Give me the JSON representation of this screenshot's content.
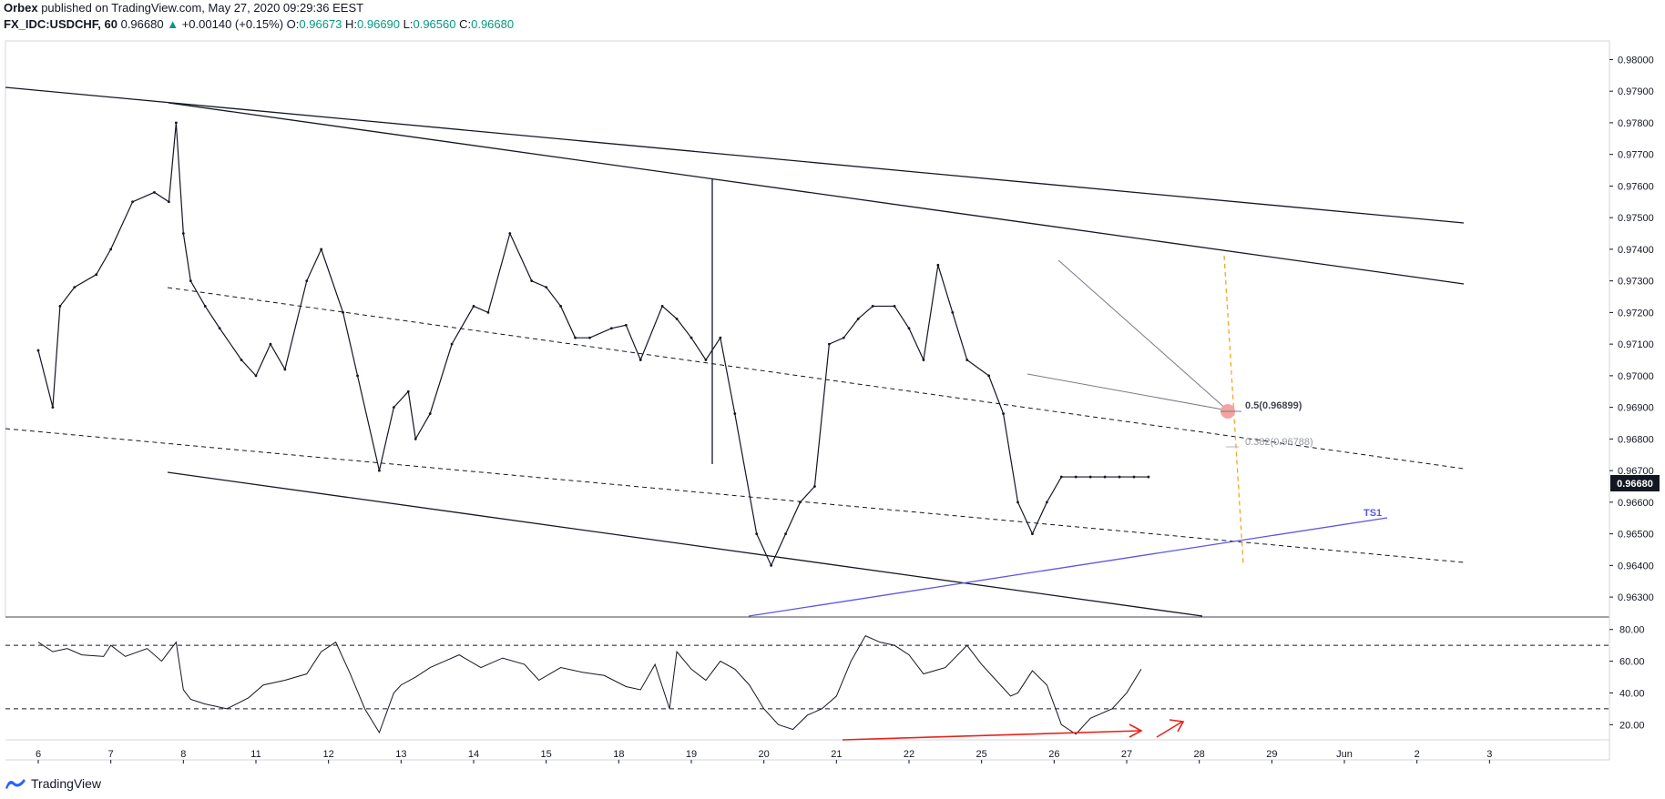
{
  "header": {
    "author": "Orbex",
    "published_text": "published on TradingView.com, May 27, 2020 09:29:36 EEST",
    "symbol": "FX_IDC:USDCHF, 60",
    "last": "0.96680",
    "change_arrow": "▲",
    "change": "+0.00140 (+0.15%)",
    "o_label": "O:",
    "o_value": "0.96673",
    "h_label": "H:",
    "h_value": "0.96690",
    "l_label": "L:",
    "l_value": "0.96560",
    "c_label": "C:",
    "c_value": "0.96680"
  },
  "footer": {
    "brand": "TradingView"
  },
  "colors": {
    "candle": "#000000",
    "trend": "#000000",
    "blue": "#5a55e8",
    "orange": "#f5a623",
    "red": "#e8231b",
    "up": "#089981"
  },
  "chart_data": {
    "type": "line",
    "title": "FX_IDC:USDCHF, 60",
    "price_axis": {
      "ticks": [
        "0.98000",
        "0.97900",
        "0.97800",
        "0.97700",
        "0.97600",
        "0.97500",
        "0.97400",
        "0.97300",
        "0.97200",
        "0.97100",
        "0.97000",
        "0.96900",
        "0.96800",
        "0.96700",
        "0.96600",
        "0.96500",
        "0.96400",
        "0.96300"
      ],
      "ylim": [
        0.9626,
        0.9803
      ],
      "last_price_label": "0.96680"
    },
    "rsi_axis": {
      "ticks": [
        "80.00",
        "60.00",
        "40.00",
        "20.00"
      ],
      "ylim": [
        11,
        85
      ],
      "levels": [
        70,
        30
      ]
    },
    "time_axis": {
      "labels": [
        "6",
        "7",
        "8",
        "11",
        "12",
        "13",
        "14",
        "15",
        "18",
        "19",
        "20",
        "21",
        "22",
        "25",
        "26",
        "27",
        "28",
        "29",
        "Jun",
        "2",
        "3"
      ],
      "xlim": [
        0,
        21
      ]
    },
    "price_series": {
      "name": "USDCHF",
      "x": [
        0.0,
        0.2,
        0.3,
        0.5,
        0.8,
        1.0,
        1.3,
        1.6,
        1.8,
        1.9,
        2.0,
        2.1,
        2.3,
        2.5,
        2.8,
        3.0,
        3.2,
        3.4,
        3.7,
        3.9,
        4.2,
        4.4,
        4.7,
        4.9,
        5.1,
        5.2,
        5.4,
        5.7,
        6.0,
        6.2,
        6.5,
        6.8,
        7.0,
        7.2,
        7.4,
        7.6,
        7.9,
        8.1,
        8.3,
        8.6,
        8.8,
        9.0,
        9.2,
        9.4,
        9.6,
        9.9,
        10.1,
        10.3,
        10.5,
        10.7,
        10.9,
        11.1,
        11.3,
        11.5,
        11.8,
        12.0,
        12.2,
        12.4,
        12.6,
        12.8,
        13.1,
        13.3,
        13.5,
        13.7,
        13.9,
        14.1,
        14.3,
        14.5,
        14.7,
        14.9,
        15.1,
        15.3
      ],
      "y": [
        0.9708,
        0.969,
        0.9722,
        0.9728,
        0.9732,
        0.974,
        0.9755,
        0.9758,
        0.9755,
        0.978,
        0.9745,
        0.973,
        0.9722,
        0.9715,
        0.9705,
        0.97,
        0.971,
        0.9702,
        0.973,
        0.974,
        0.972,
        0.97,
        0.967,
        0.969,
        0.9695,
        0.968,
        0.9688,
        0.971,
        0.9722,
        0.972,
        0.9745,
        0.973,
        0.9728,
        0.9722,
        0.9712,
        0.9712,
        0.9715,
        0.9716,
        0.9705,
        0.9722,
        0.9718,
        0.9712,
        0.9705,
        0.9712,
        0.9688,
        0.965,
        0.964,
        0.965,
        0.966,
        0.9665,
        0.971,
        0.9712,
        0.9718,
        0.9722,
        0.9722,
        0.9715,
        0.9705,
        0.9735,
        0.972,
        0.9705,
        0.97,
        0.9688,
        0.966,
        0.965,
        0.966,
        0.9668,
        0.9668,
        0.9668,
        0.9668,
        0.9668,
        0.9668,
        0.9668
      ]
    },
    "rsi_series": {
      "name": "RSI",
      "x": [
        0.0,
        0.2,
        0.4,
        0.6,
        0.9,
        1.0,
        1.2,
        1.5,
        1.7,
        1.9,
        2.0,
        2.1,
        2.3,
        2.6,
        2.9,
        3.1,
        3.4,
        3.7,
        3.9,
        4.1,
        4.3,
        4.5,
        4.7,
        4.9,
        5.0,
        5.2,
        5.4,
        5.6,
        5.8,
        6.1,
        6.4,
        6.7,
        6.9,
        7.2,
        7.5,
        7.8,
        8.1,
        8.3,
        8.5,
        8.7,
        8.8,
        9.0,
        9.2,
        9.4,
        9.6,
        9.8,
        10.0,
        10.2,
        10.4,
        10.6,
        10.8,
        11.0,
        11.2,
        11.4,
        11.6,
        11.8,
        12.0,
        12.2,
        12.5,
        12.8,
        13.0,
        13.2,
        13.4,
        13.5,
        13.7,
        13.9,
        14.1,
        14.3,
        14.5,
        14.8,
        15.0,
        15.2
      ],
      "y": [
        72,
        66,
        68,
        64,
        63,
        70,
        63,
        68,
        60,
        72,
        42,
        36,
        33,
        30,
        37,
        45,
        48,
        52,
        66,
        72,
        52,
        30,
        15,
        40,
        45,
        50,
        56,
        60,
        64,
        56,
        62,
        58,
        48,
        56,
        53,
        51,
        44,
        42,
        58,
        30,
        66,
        55,
        48,
        60,
        55,
        45,
        30,
        20,
        17,
        26,
        30,
        38,
        60,
        76,
        72,
        70,
        64,
        52,
        56,
        70,
        58,
        48,
        38,
        40,
        54,
        45,
        20,
        14,
        24,
        30,
        40,
        55
      ]
    },
    "annotations": {
      "fib_05": "0.5(0.96899)",
      "fib_0382": "0.382(0.96788)",
      "ts1": "TS1"
    }
  }
}
